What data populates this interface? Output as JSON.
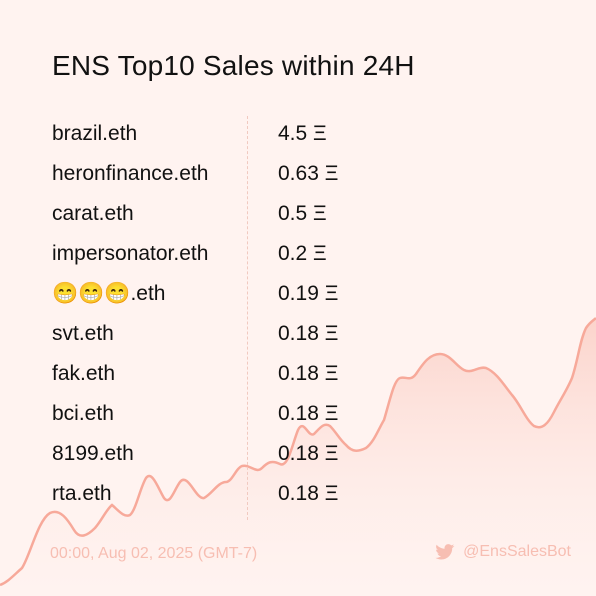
{
  "title": "ENS Top10 Sales within 24H",
  "currency_symbol": "Ξ",
  "sales": [
    {
      "name": "brazil.eth",
      "price": "4.5 Ξ"
    },
    {
      "name": "heronfinance.eth",
      "price": "0.63 Ξ"
    },
    {
      "name": "carat.eth",
      "price": "0.5 Ξ"
    },
    {
      "name": "impersonator.eth",
      "price": "0.2 Ξ"
    },
    {
      "name": "😁😁😁.eth",
      "price": "0.19 Ξ"
    },
    {
      "name": "svt.eth",
      "price": "0.18 Ξ"
    },
    {
      "name": "fak.eth",
      "price": "0.18 Ξ"
    },
    {
      "name": "bci.eth",
      "price": "0.18 Ξ"
    },
    {
      "name": "8199.eth",
      "price": "0.18 Ξ"
    },
    {
      "name": "rta.eth",
      "price": "0.18 Ξ"
    }
  ],
  "footer": {
    "timestamp": "00:00, Aug 02, 2025 (GMT-7)",
    "handle": "@EnsSalesBot",
    "icon": "twitter-bird-icon"
  },
  "colors": {
    "background": "#fff3f0",
    "accent": "#f7a99a",
    "footer_text": "#f7beb2"
  }
}
